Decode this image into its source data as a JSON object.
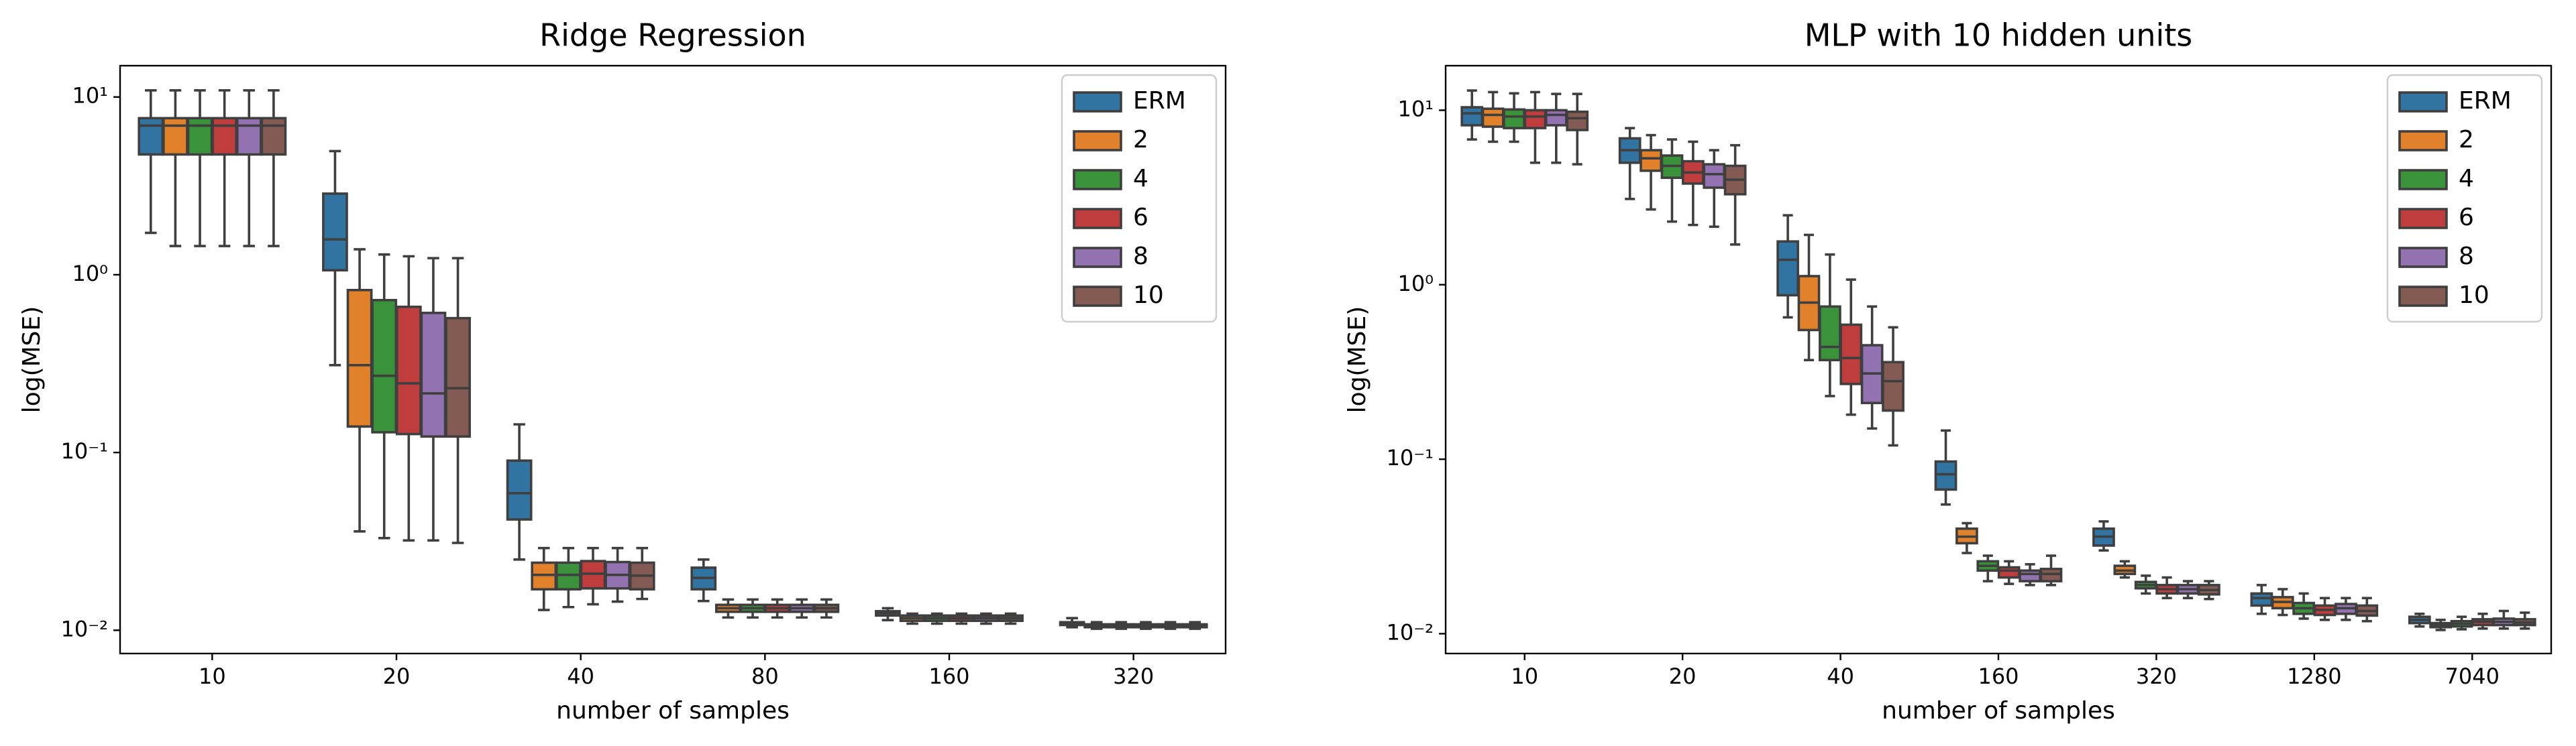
{
  "chart_data": [
    {
      "type": "box",
      "title": "Ridge Regression",
      "xlabel": "number of samples",
      "ylabel": "log(MSE)",
      "log": true,
      "legend": "upper right",
      "ylim": [
        0.0074,
        15
      ],
      "yticks": [
        {
          "value": 0.01,
          "label": "10⁻²"
        },
        {
          "value": 0.1,
          "label": "10⁻¹"
        },
        {
          "value": 1,
          "label": "10⁰"
        },
        {
          "value": 10,
          "label": "10¹"
        }
      ],
      "categories": [
        "10",
        "20",
        "40",
        "80",
        "160",
        "320"
      ],
      "series": [
        {
          "name": "ERM",
          "color": "#3274a1",
          "values": [
            [
              1.72,
              4.75,
              6.9,
              7.6,
              10.9
            ],
            [
              0.31,
              1.06,
              1.58,
              2.86,
              4.96
            ],
            [
              0.025,
              0.042,
              0.059,
              0.09,
              0.144
            ],
            [
              0.0146,
              0.017,
              0.0197,
              0.0225,
              0.025
            ],
            [
              0.0114,
              0.0121,
              0.0125,
              0.0128,
              0.0133
            ],
            [
              0.0104,
              0.0107,
              0.0109,
              0.0111,
              0.0117
            ]
          ]
        },
        {
          "name": "2",
          "color": "#e1812c",
          "values": [
            [
              1.45,
              4.75,
              6.9,
              7.6,
              10.9
            ],
            [
              0.036,
              0.14,
              0.31,
              0.82,
              1.39
            ],
            [
              0.013,
              0.017,
              0.0205,
              0.024,
              0.029
            ],
            [
              0.0118,
              0.0127,
              0.0133,
              0.0139,
              0.0149
            ],
            [
              0.0109,
              0.0113,
              0.0117,
              0.0121,
              0.0124
            ],
            [
              0.0102,
              0.0104,
              0.0106,
              0.0108,
              0.0111
            ]
          ]
        },
        {
          "name": "4",
          "color": "#3a923a",
          "values": [
            [
              1.45,
              4.75,
              6.9,
              7.6,
              10.9
            ],
            [
              0.033,
              0.13,
              0.27,
              0.72,
              1.3
            ],
            [
              0.0135,
              0.017,
              0.0205,
              0.024,
              0.029
            ],
            [
              0.0118,
              0.0127,
              0.0133,
              0.0139,
              0.0149
            ],
            [
              0.0109,
              0.0113,
              0.0117,
              0.0121,
              0.0124
            ],
            [
              0.0102,
              0.0104,
              0.0106,
              0.0108,
              0.0111
            ]
          ]
        },
        {
          "name": "6",
          "color": "#c03d3e",
          "values": [
            [
              1.45,
              4.75,
              6.9,
              7.6,
              10.9
            ],
            [
              0.032,
              0.127,
              0.245,
              0.66,
              1.27
            ],
            [
              0.014,
              0.0172,
              0.0208,
              0.0245,
              0.029
            ],
            [
              0.0118,
              0.0127,
              0.0133,
              0.0139,
              0.0149
            ],
            [
              0.0109,
              0.0113,
              0.0117,
              0.0121,
              0.0124
            ],
            [
              0.0102,
              0.0104,
              0.0106,
              0.0108,
              0.0111
            ]
          ]
        },
        {
          "name": "8",
          "color": "#9372b2",
          "values": [
            [
              1.45,
              4.75,
              6.9,
              7.6,
              10.9
            ],
            [
              0.032,
              0.123,
              0.215,
              0.61,
              1.24
            ],
            [
              0.0145,
              0.0172,
              0.0205,
              0.0242,
              0.029
            ],
            [
              0.0118,
              0.0127,
              0.0133,
              0.0139,
              0.0149
            ],
            [
              0.0109,
              0.0113,
              0.0117,
              0.0121,
              0.0124
            ],
            [
              0.0102,
              0.0104,
              0.0106,
              0.0108,
              0.0111
            ]
          ]
        },
        {
          "name": "10",
          "color": "#845b53",
          "values": [
            [
              1.45,
              4.75,
              6.9,
              7.6,
              10.9
            ],
            [
              0.031,
              0.123,
              0.23,
              0.57,
              1.24
            ],
            [
              0.015,
              0.017,
              0.0203,
              0.024,
              0.029
            ],
            [
              0.0118,
              0.0127,
              0.0133,
              0.0139,
              0.0149
            ],
            [
              0.0109,
              0.0113,
              0.0117,
              0.0121,
              0.0124
            ],
            [
              0.0102,
              0.0104,
              0.0106,
              0.0108,
              0.0111
            ]
          ]
        }
      ]
    },
    {
      "type": "box",
      "title": "MLP with 10 hidden units",
      "xlabel": "number of samples",
      "ylabel": "log(MSE)",
      "log": true,
      "legend": "upper right",
      "ylim": [
        0.0077,
        18
      ],
      "yticks": [
        {
          "value": 0.01,
          "label": "10⁻²"
        },
        {
          "value": 0.1,
          "label": "10⁻¹"
        },
        {
          "value": 1,
          "label": "10⁰"
        },
        {
          "value": 10,
          "label": "10¹"
        }
      ],
      "categories": [
        "10",
        "20",
        "40",
        "160",
        "320",
        "1280",
        "7040"
      ],
      "series": [
        {
          "name": "ERM",
          "color": "#3274a1",
          "values": [
            [
              6.8,
              8.2,
              9.6,
              10.4,
              12.97
            ],
            [
              3.1,
              5.0,
              5.9,
              6.9,
              7.9
            ],
            [
              0.65,
              0.87,
              1.39,
              1.77,
              2.5
            ],
            [
              0.055,
              0.067,
              0.082,
              0.097,
              0.146
            ],
            [
              0.03,
              0.032,
              0.036,
              0.04,
              0.044
            ],
            [
              0.013,
              0.0145,
              0.016,
              0.017,
              0.019
            ],
            [
              0.011,
              0.0115,
              0.012,
              0.0125,
              0.013
            ]
          ]
        },
        {
          "name": "2",
          "color": "#e1812c",
          "values": [
            [
              6.6,
              8.05,
              9.4,
              10.2,
              12.7
            ],
            [
              2.7,
              4.5,
              5.3,
              5.9,
              7.2
            ],
            [
              0.37,
              0.55,
              0.79,
              1.12,
              1.93
            ],
            [
              0.029,
              0.033,
              0.036,
              0.04,
              0.043
            ],
            [
              0.021,
              0.022,
              0.023,
              0.0245,
              0.026
            ],
            [
              0.0128,
              0.014,
              0.0152,
              0.0162,
              0.018
            ],
            [
              0.0105,
              0.0109,
              0.0112,
              0.0115,
              0.012
            ]
          ]
        },
        {
          "name": "4",
          "color": "#3a923a",
          "values": [
            [
              6.6,
              7.9,
              9.2,
              10.1,
              12.5
            ],
            [
              2.3,
              4.1,
              4.8,
              5.5,
              6.8
            ],
            [
              0.23,
              0.37,
              0.44,
              0.75,
              1.49
            ],
            [
              0.02,
              0.023,
              0.0245,
              0.026,
              0.028
            ],
            [
              0.017,
              0.0182,
              0.019,
              0.0198,
              0.0215
            ],
            [
              0.0122,
              0.013,
              0.014,
              0.015,
              0.017
            ],
            [
              0.0106,
              0.011,
              0.0114,
              0.0118,
              0.0125
            ]
          ]
        },
        {
          "name": "6",
          "color": "#c03d3e",
          "values": [
            [
              5.0,
              7.9,
              9.2,
              10.0,
              12.7
            ],
            [
              2.2,
              3.8,
              4.4,
              5.1,
              6.6
            ],
            [
              0.18,
              0.27,
              0.38,
              0.59,
              1.07
            ],
            [
              0.0193,
              0.021,
              0.023,
              0.024,
              0.026
            ],
            [
              0.016,
              0.017,
              0.018,
              0.019,
              0.021
            ],
            [
              0.012,
              0.0128,
              0.0137,
              0.0145,
              0.016
            ],
            [
              0.0107,
              0.0112,
              0.0117,
              0.0121,
              0.013
            ]
          ]
        },
        {
          "name": "8",
          "color": "#9372b2",
          "values": [
            [
              5.0,
              8.2,
              9.4,
              10.0,
              12.4
            ],
            [
              2.15,
              3.6,
              4.3,
              4.9,
              5.9
            ],
            [
              0.15,
              0.21,
              0.31,
              0.45,
              0.75
            ],
            [
              0.019,
              0.02,
              0.022,
              0.023,
              0.025
            ],
            [
              0.016,
              0.017,
              0.018,
              0.019,
              0.02
            ],
            [
              0.012,
              0.013,
              0.014,
              0.0148,
              0.016
            ],
            [
              0.0107,
              0.0112,
              0.0117,
              0.0122,
              0.0135
            ]
          ]
        },
        {
          "name": "10",
          "color": "#845b53",
          "values": [
            [
              4.9,
              7.7,
              9.0,
              9.8,
              12.4
            ],
            [
              1.7,
              3.3,
              4.0,
              4.8,
              6.3
            ],
            [
              0.12,
              0.19,
              0.28,
              0.36,
              0.57
            ],
            [
              0.019,
              0.02,
              0.022,
              0.0235,
              0.028
            ],
            [
              0.0158,
              0.0168,
              0.0178,
              0.019,
              0.02
            ],
            [
              0.0118,
              0.0127,
              0.0135,
              0.0145,
              0.016
            ],
            [
              0.0107,
              0.0112,
              0.0116,
              0.0121,
              0.0132
            ]
          ]
        }
      ]
    }
  ]
}
